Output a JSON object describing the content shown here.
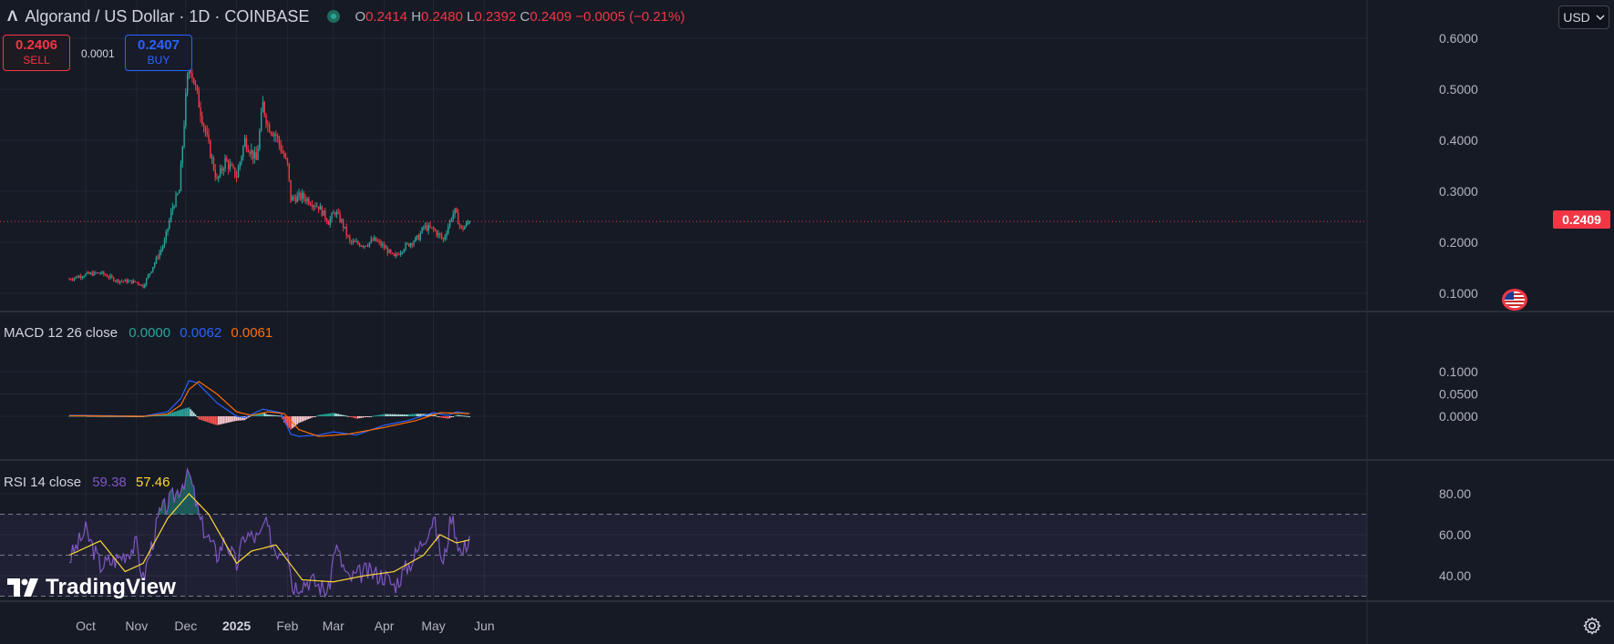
{
  "header": {
    "symbol_title": "Algorand / US Dollar · 1D · COINBASE",
    "open_label": "O",
    "open": "0.2414",
    "high_label": "H",
    "high": "0.2480",
    "low_label": "L",
    "low": "0.2392",
    "close_label": "C",
    "close": "0.2409",
    "change": "−0.0005 (−0.21%)"
  },
  "trade": {
    "sell_price": "0.2406",
    "sell_label": "SELL",
    "spread": "0.0001",
    "buy_price": "0.2407",
    "buy_label": "BUY"
  },
  "currency": "USD",
  "last_price_tag": "0.2409",
  "colors": {
    "up": "#26a69a",
    "down": "#f23645",
    "background": "#161a25",
    "grid": "#232632",
    "macd": "#2962ff",
    "signal": "#ff6d00",
    "rsi": "#7e57c2",
    "rsi_ma": "#fdd835"
  },
  "macd_legend": {
    "name": "MACD 12 26 close",
    "hist": "0.0000",
    "macd": "0.0062",
    "signal": "0.0061"
  },
  "rsi_legend": {
    "name": "RSI 14 close",
    "rsi": "59.38",
    "ma": "57.46"
  },
  "branding": {
    "name": "TradingView"
  },
  "icons": {
    "flag": "us-flag-icon",
    "settings": "gear-icon",
    "logo": "tradingview-logo-icon"
  },
  "chart_data": [
    {
      "type": "candlestick",
      "title": "Algorand / US Dollar · 1D · COINBASE",
      "x_ticks": [
        "Oct",
        "Nov",
        "Dec",
        "2025",
        "Feb",
        "Mar",
        "Apr",
        "May",
        "Jun"
      ],
      "y_ticks": [
        "0.1000",
        "0.2000",
        "0.3000",
        "0.4000",
        "0.5000",
        "0.6000"
      ],
      "ylim": [
        0.05,
        0.62
      ],
      "grid": true,
      "approx_close_path": [
        [
          "Sep 21",
          0.128
        ],
        [
          "Oct 1",
          0.137
        ],
        [
          "Oct 10",
          0.14
        ],
        [
          "Oct 20",
          0.125
        ],
        [
          "Nov 1",
          0.122
        ],
        [
          "Nov 5",
          0.114
        ],
        [
          "Nov 12",
          0.16
        ],
        [
          "Nov 18",
          0.2
        ],
        [
          "Nov 23",
          0.27
        ],
        [
          "Nov 27",
          0.3
        ],
        [
          "Dec 1",
          0.48
        ],
        [
          "Dec 3",
          0.56
        ],
        [
          "Dec 7",
          0.5
        ],
        [
          "Dec 12",
          0.43
        ],
        [
          "Dec 20",
          0.32
        ],
        [
          "Dec 25",
          0.36
        ],
        [
          "Jan 1",
          0.33
        ],
        [
          "Jan 6",
          0.4
        ],
        [
          "Jan 13",
          0.36
        ],
        [
          "Jan 17",
          0.47
        ],
        [
          "Jan 20",
          0.43
        ],
        [
          "Jan 25",
          0.41
        ],
        [
          "Feb 1",
          0.35
        ],
        [
          "Feb 3",
          0.285
        ],
        [
          "Feb 10",
          0.29
        ],
        [
          "Feb 20",
          0.27
        ],
        [
          "Feb 26",
          0.24
        ],
        [
          "Mar 2",
          0.26
        ],
        [
          "Mar 6",
          0.24
        ],
        [
          "Mar 11",
          0.2
        ],
        [
          "Mar 20",
          0.195
        ],
        [
          "Mar 26",
          0.205
        ],
        [
          "Apr 1",
          0.19
        ],
        [
          "Apr 7",
          0.17
        ],
        [
          "Apr 13",
          0.19
        ],
        [
          "Apr 22",
          0.21
        ],
        [
          "Apr 25",
          0.23
        ],
        [
          "May 1",
          0.225
        ],
        [
          "May 7",
          0.205
        ],
        [
          "May 12",
          0.25
        ],
        [
          "May 14",
          0.26
        ],
        [
          "May 18",
          0.225
        ],
        [
          "May 23",
          0.2409
        ]
      ]
    },
    {
      "type": "line",
      "title": "MACD 12 26 close",
      "y_ticks": [
        "0.0000",
        "0.0500",
        "0.1000"
      ],
      "series": [
        {
          "name": "MACD",
          "values_approx": [
            [
              "Oct 1",
              0.002
            ],
            [
              "Nov 5",
              0.0
            ],
            [
              "Nov 20",
              0.01
            ],
            [
              "Nov 28",
              0.04
            ],
            [
              "Dec 3",
              0.08
            ],
            [
              "Dec 8",
              0.075
            ],
            [
              "Dec 20",
              0.03
            ],
            [
              "Jan 1",
              0.0
            ],
            [
              "Jan 6",
              -0.003
            ],
            [
              "Jan 17",
              0.016
            ],
            [
              "Jan 28",
              0.008
            ],
            [
              "Feb 3",
              -0.04
            ],
            [
              "Feb 8",
              -0.045
            ],
            [
              "Feb 20",
              -0.042
            ],
            [
              "Mar 1",
              -0.035
            ],
            [
              "Mar 15",
              -0.042
            ],
            [
              "Apr 1",
              -0.02
            ],
            [
              "Apr 15",
              -0.01
            ],
            [
              "May 1",
              0.008
            ],
            [
              "May 10",
              0.002
            ],
            [
              "May 15",
              0.01
            ],
            [
              "May 23",
              0.006
            ]
          ]
        },
        {
          "name": "Signal",
          "values_approx": [
            [
              "Oct 1",
              0.001
            ],
            [
              "Nov 5",
              0.0
            ],
            [
              "Nov 20",
              0.005
            ],
            [
              "Nov 28",
              0.025
            ],
            [
              "Dec 3",
              0.06
            ],
            [
              "Dec 9",
              0.078
            ],
            [
              "Dec 20",
              0.05
            ],
            [
              "Jan 1",
              0.01
            ],
            [
              "Jan 10",
              0.002
            ],
            [
              "Jan 20",
              0.01
            ],
            [
              "Jan 30",
              0.006
            ],
            [
              "Feb 8",
              -0.03
            ],
            [
              "Feb 20",
              -0.045
            ],
            [
              "Mar 10",
              -0.04
            ],
            [
              "Apr 1",
              -0.025
            ],
            [
              "Apr 20",
              -0.01
            ],
            [
              "May 5",
              0.008
            ],
            [
              "May 23",
              0.006
            ]
          ]
        }
      ]
    },
    {
      "type": "line",
      "title": "RSI 14 close",
      "y_ticks": [
        "40.00",
        "60.00",
        "80.00"
      ],
      "band": [
        30,
        70
      ],
      "series": [
        {
          "name": "RSI",
          "values_approx": [
            [
              "Sep 21",
              48
            ],
            [
              "Oct 1",
              62
            ],
            [
              "Oct 10",
              45
            ],
            [
              "Oct 20",
              48
            ],
            [
              "Nov 1",
              55
            ],
            [
              "Nov 5",
              38
            ],
            [
              "Nov 15",
              70
            ],
            [
              "Nov 25",
              80
            ],
            [
              "Dec 1",
              88
            ],
            [
              "Dec 3",
              90
            ],
            [
              "Dec 10",
              66
            ],
            [
              "Dec 20",
              50
            ],
            [
              "Dec 25",
              58
            ],
            [
              "Jan 1",
              45
            ],
            [
              "Jan 6",
              60
            ],
            [
              "Jan 15",
              58
            ],
            [
              "Jan 18",
              66
            ],
            [
              "Jan 25",
              52
            ],
            [
              "Feb 1",
              55
            ],
            [
              "Feb 4",
              35
            ],
            [
              "Feb 15",
              38
            ],
            [
              "Feb 26",
              32
            ],
            [
              "Mar 2",
              55
            ],
            [
              "Mar 10",
              38
            ],
            [
              "Mar 20",
              42
            ],
            [
              "Apr 1",
              40
            ],
            [
              "Apr 7",
              35
            ],
            [
              "Apr 20",
              50
            ],
            [
              "May 1",
              68
            ],
            [
              "May 7",
              45
            ],
            [
              "May 12",
              70
            ],
            [
              "May 18",
              50
            ],
            [
              "May 23",
              59.38
            ]
          ]
        },
        {
          "name": "RSI-based MA",
          "values_approx": [
            [
              "Sep 21",
              50
            ],
            [
              "Oct 10",
              57
            ],
            [
              "Oct 25",
              42
            ],
            [
              "Nov 5",
              46
            ],
            [
              "Nov 20",
              68
            ],
            [
              "Dec 3",
              80
            ],
            [
              "Dec 15",
              70
            ],
            [
              "Jan 1",
              46
            ],
            [
              "Jan 10",
              52
            ],
            [
              "Jan 25",
              55
            ],
            [
              "Feb 10",
              38
            ],
            [
              "Mar 1",
              37
            ],
            [
              "Mar 20",
              40
            ],
            [
              "Apr 7",
              42
            ],
            [
              "Apr 25",
              50
            ],
            [
              "May 5",
              60
            ],
            [
              "May 15",
              56
            ],
            [
              "May 23",
              57.46
            ]
          ]
        }
      ]
    }
  ]
}
